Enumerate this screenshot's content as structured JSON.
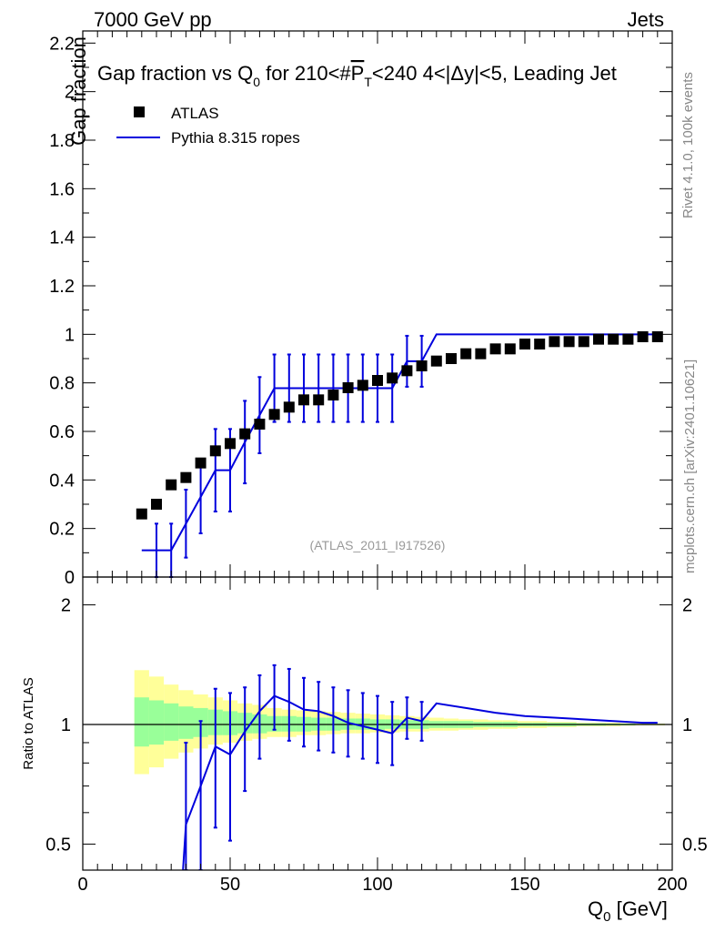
{
  "header": {
    "left": "7000 GeV pp",
    "right": "Jets"
  },
  "side_text": {
    "rivet": "Rivet 4.1.0,  100k events",
    "mcplots": "mcplots.cern.ch [arXiv:2401.10621]"
  },
  "watermark": "(ATLAS_2011_I917526)",
  "title": {
    "part1": "Gap fraction vs Q",
    "sub0": "0",
    "part2": " for 210<#",
    "pbar": "P",
    "subT": "T",
    "part3": "<240  4<|Δy|<5, Leading Jet"
  },
  "axes": {
    "ylabel_top": "Gap fraction",
    "ylabel_bottom": "Ratio to ATLAS",
    "xlabel_main": "Q",
    "xlabel_sub": "0",
    "xlabel_unit": " [GeV]",
    "x_ticks": [
      "0",
      "50",
      "100",
      "150",
      "200"
    ],
    "y_ticks_top": [
      "0",
      "0.2",
      "0.4",
      "0.6",
      "0.8",
      "1",
      "1.2",
      "1.4",
      "1.6",
      "1.8",
      "2",
      "2.2"
    ],
    "y_ticks_bottom": [
      "0.5",
      "1",
      "2"
    ]
  },
  "legend": {
    "data_label": "ATLAS",
    "mc_label": "Pythia 8.315 ropes"
  },
  "colors": {
    "mc": "#0000dd",
    "band_inner": "#99ff99",
    "band_outer": "#ffff99",
    "data": "#000000"
  },
  "chart_data": {
    "type": "line",
    "title": "Gap fraction vs Q0 for 210<#PT<240  4<|Δy|<5, Leading Jet",
    "xlabel": "Q0 [GeV]",
    "ylabel": "Gap fraction",
    "xlim": [
      0,
      200
    ],
    "ylim": [
      0,
      2.25
    ],
    "ratio_ylim_log": [
      0.43,
      2.35
    ],
    "data_x": [
      20,
      25,
      30,
      35,
      40,
      45,
      50,
      55,
      60,
      65,
      70,
      75,
      80,
      85,
      90,
      95,
      100,
      105,
      110,
      115,
      120,
      125,
      130,
      135,
      140,
      145,
      150,
      155,
      160,
      165,
      170,
      175,
      180,
      185,
      190,
      195
    ],
    "data_y": [
      0.26,
      0.3,
      0.38,
      0.41,
      0.47,
      0.52,
      0.55,
      0.59,
      0.63,
      0.67,
      0.7,
      0.73,
      0.73,
      0.75,
      0.78,
      0.79,
      0.81,
      0.82,
      0.85,
      0.87,
      0.89,
      0.9,
      0.92,
      0.92,
      0.94,
      0.94,
      0.96,
      0.96,
      0.97,
      0.97,
      0.97,
      0.98,
      0.98,
      0.98,
      0.99,
      0.99
    ],
    "mc_steps": [
      {
        "x0": 25,
        "x1": 30,
        "y": 0.11
      },
      {
        "x0": 30,
        "x1": 35,
        "y": 0.11
      },
      {
        "x0": 45,
        "x1": 50,
        "y": 0.44
      },
      {
        "x0": 65,
        "x1": 105,
        "y": 0.778
      },
      {
        "x0": 110,
        "x1": 115,
        "y": 0.89
      },
      {
        "x0": 120,
        "x1": 195,
        "y": 1.0
      }
    ],
    "mc_points": [
      {
        "x": 25,
        "y": 0.11,
        "err": 0.11
      },
      {
        "x": 30,
        "y": 0.11,
        "err": 0.11
      },
      {
        "x": 35,
        "y": 0.22,
        "err": 0.14
      },
      {
        "x": 40,
        "y": 0.33,
        "err": 0.15
      },
      {
        "x": 45,
        "y": 0.44,
        "err": 0.17
      },
      {
        "x": 50,
        "y": 0.44,
        "err": 0.17
      },
      {
        "x": 55,
        "y": 0.556,
        "err": 0.17
      },
      {
        "x": 60,
        "y": 0.667,
        "err": 0.157
      },
      {
        "x": 65,
        "y": 0.778,
        "err": 0.139
      },
      {
        "x": 70,
        "y": 0.778,
        "err": 0.139
      },
      {
        "x": 75,
        "y": 0.778,
        "err": 0.139
      },
      {
        "x": 80,
        "y": 0.778,
        "err": 0.139
      },
      {
        "x": 85,
        "y": 0.778,
        "err": 0.139
      },
      {
        "x": 90,
        "y": 0.778,
        "err": 0.139
      },
      {
        "x": 95,
        "y": 0.778,
        "err": 0.139
      },
      {
        "x": 100,
        "y": 0.778,
        "err": 0.139
      },
      {
        "x": 105,
        "y": 0.778,
        "err": 0.139
      },
      {
        "x": 110,
        "y": 0.889,
        "err": 0.105
      },
      {
        "x": 115,
        "y": 0.889,
        "err": 0.105
      }
    ],
    "mc_line": [
      [
        20,
        0.11
      ],
      [
        25,
        0.11
      ],
      [
        30,
        0.11
      ],
      [
        35,
        0.22
      ],
      [
        40,
        0.33
      ],
      [
        45,
        0.44
      ],
      [
        50,
        0.44
      ],
      [
        55,
        0.556
      ],
      [
        60,
        0.667
      ],
      [
        65,
        0.778
      ],
      [
        70,
        0.778
      ],
      [
        75,
        0.778
      ],
      [
        80,
        0.778
      ],
      [
        85,
        0.778
      ],
      [
        90,
        0.778
      ],
      [
        95,
        0.778
      ],
      [
        100,
        0.778
      ],
      [
        105,
        0.778
      ],
      [
        110,
        0.889
      ],
      [
        115,
        0.889
      ],
      [
        120,
        1.0
      ],
      [
        195,
        1.0
      ]
    ],
    "ratio_line": [
      [
        34,
        0.43
      ],
      [
        35,
        0.56
      ],
      [
        40,
        0.7
      ],
      [
        45,
        0.88
      ],
      [
        50,
        0.84
      ],
      [
        55,
        0.96
      ],
      [
        60,
        1.08
      ],
      [
        65,
        1.18
      ],
      [
        70,
        1.14
      ],
      [
        75,
        1.09
      ],
      [
        80,
        1.08
      ],
      [
        85,
        1.05
      ],
      [
        90,
        1.01
      ],
      [
        95,
        0.99
      ],
      [
        100,
        0.97
      ],
      [
        105,
        0.95
      ],
      [
        110,
        1.04
      ],
      [
        115,
        1.02
      ],
      [
        120,
        1.13
      ],
      [
        130,
        1.1
      ],
      [
        140,
        1.07
      ],
      [
        150,
        1.05
      ],
      [
        160,
        1.04
      ],
      [
        170,
        1.03
      ],
      [
        180,
        1.02
      ],
      [
        190,
        1.01
      ],
      [
        195,
        1.01
      ]
    ],
    "ratio_points": [
      {
        "x": 35,
        "lo": 0.43,
        "hi": 0.9
      },
      {
        "x": 40,
        "lo": 0.43,
        "hi": 1.02
      },
      {
        "x": 45,
        "lo": 0.55,
        "hi": 1.23
      },
      {
        "x": 50,
        "lo": 0.51,
        "hi": 1.2
      },
      {
        "x": 55,
        "lo": 0.68,
        "hi": 1.24
      },
      {
        "x": 60,
        "lo": 0.82,
        "hi": 1.33
      },
      {
        "x": 65,
        "lo": 0.97,
        "hi": 1.41
      },
      {
        "x": 70,
        "lo": 0.91,
        "hi": 1.38
      },
      {
        "x": 75,
        "lo": 0.88,
        "hi": 1.31
      },
      {
        "x": 80,
        "lo": 0.86,
        "hi": 1.28
      },
      {
        "x": 85,
        "lo": 0.85,
        "hi": 1.24
      },
      {
        "x": 90,
        "lo": 0.83,
        "hi": 1.22
      },
      {
        "x": 95,
        "lo": 0.82,
        "hi": 1.2
      },
      {
        "x": 100,
        "lo": 0.8,
        "hi": 1.18
      },
      {
        "x": 105,
        "lo": 0.79,
        "hi": 1.14
      },
      {
        "x": 110,
        "lo": 0.92,
        "hi": 1.17
      },
      {
        "x": 115,
        "lo": 0.91,
        "hi": 1.14
      }
    ],
    "band_bins": [
      {
        "x0": 17.5,
        "x1": 22.5,
        "inner": [
          0.88,
          1.17
        ],
        "outer": [
          0.75,
          1.37
        ]
      },
      {
        "x0": 22.5,
        "x1": 27.5,
        "inner": [
          0.89,
          1.15
        ],
        "outer": [
          0.78,
          1.32
        ]
      },
      {
        "x0": 27.5,
        "x1": 32.5,
        "inner": [
          0.91,
          1.13
        ],
        "outer": [
          0.82,
          1.26
        ]
      },
      {
        "x0": 32.5,
        "x1": 37.5,
        "inner": [
          0.92,
          1.11
        ],
        "outer": [
          0.85,
          1.22
        ]
      },
      {
        "x0": 37.5,
        "x1": 42.5,
        "inner": [
          0.93,
          1.1
        ],
        "outer": [
          0.87,
          1.19
        ]
      },
      {
        "x0": 42.5,
        "x1": 47.5,
        "inner": [
          0.94,
          1.09
        ],
        "outer": [
          0.89,
          1.17
        ]
      },
      {
        "x0": 47.5,
        "x1": 52.5,
        "inner": [
          0.94,
          1.08
        ],
        "outer": [
          0.9,
          1.15
        ]
      },
      {
        "x0": 52.5,
        "x1": 57.5,
        "inner": [
          0.95,
          1.07
        ],
        "outer": [
          0.91,
          1.13
        ]
      },
      {
        "x0": 57.5,
        "x1": 62.5,
        "inner": [
          0.95,
          1.06
        ],
        "outer": [
          0.92,
          1.12
        ]
      },
      {
        "x0": 62.5,
        "x1": 67.5,
        "inner": [
          0.96,
          1.05
        ],
        "outer": [
          0.93,
          1.1
        ]
      },
      {
        "x0": 67.5,
        "x1": 72.5,
        "inner": [
          0.96,
          1.05
        ],
        "outer": [
          0.93,
          1.09
        ]
      },
      {
        "x0": 72.5,
        "x1": 77.5,
        "inner": [
          0.96,
          1.045
        ],
        "outer": [
          0.94,
          1.085
        ]
      },
      {
        "x0": 77.5,
        "x1": 82.5,
        "inner": [
          0.965,
          1.04
        ],
        "outer": [
          0.94,
          1.08
        ]
      },
      {
        "x0": 82.5,
        "x1": 87.5,
        "inner": [
          0.965,
          1.04
        ],
        "outer": [
          0.945,
          1.075
        ]
      },
      {
        "x0": 87.5,
        "x1": 92.5,
        "inner": [
          0.97,
          1.035
        ],
        "outer": [
          0.95,
          1.07
        ]
      },
      {
        "x0": 92.5,
        "x1": 97.5,
        "inner": [
          0.97,
          1.035
        ],
        "outer": [
          0.95,
          1.065
        ]
      },
      {
        "x0": 97.5,
        "x1": 102.5,
        "inner": [
          0.97,
          1.03
        ],
        "outer": [
          0.955,
          1.06
        ]
      },
      {
        "x0": 102.5,
        "x1": 107.5,
        "inner": [
          0.975,
          1.03
        ],
        "outer": [
          0.955,
          1.055
        ]
      },
      {
        "x0": 107.5,
        "x1": 112.5,
        "inner": [
          0.975,
          1.025
        ],
        "outer": [
          0.96,
          1.05
        ]
      },
      {
        "x0": 112.5,
        "x1": 117.5,
        "inner": [
          0.975,
          1.025
        ],
        "outer": [
          0.96,
          1.045
        ]
      },
      {
        "x0": 117.5,
        "x1": 122.5,
        "inner": [
          0.98,
          1.02
        ],
        "outer": [
          0.965,
          1.04
        ]
      },
      {
        "x0": 122.5,
        "x1": 127.5,
        "inner": [
          0.98,
          1.02
        ],
        "outer": [
          0.965,
          1.035
        ]
      },
      {
        "x0": 127.5,
        "x1": 132.5,
        "inner": [
          0.98,
          1.02
        ],
        "outer": [
          0.97,
          1.03
        ]
      },
      {
        "x0": 132.5,
        "x1": 137.5,
        "inner": [
          0.985,
          1.015
        ],
        "outer": [
          0.97,
          1.03
        ]
      },
      {
        "x0": 137.5,
        "x1": 142.5,
        "inner": [
          0.985,
          1.015
        ],
        "outer": [
          0.975,
          1.025
        ]
      },
      {
        "x0": 142.5,
        "x1": 147.5,
        "inner": [
          0.985,
          1.015
        ],
        "outer": [
          0.975,
          1.025
        ]
      },
      {
        "x0": 147.5,
        "x1": 152.5,
        "inner": [
          0.99,
          1.01
        ],
        "outer": [
          0.98,
          1.02
        ]
      },
      {
        "x0": 152.5,
        "x1": 157.5,
        "inner": [
          0.99,
          1.01
        ],
        "outer": [
          0.98,
          1.02
        ]
      },
      {
        "x0": 157.5,
        "x1": 162.5,
        "inner": [
          0.99,
          1.01
        ],
        "outer": [
          0.985,
          1.015
        ]
      },
      {
        "x0": 162.5,
        "x1": 167.5,
        "inner": [
          0.99,
          1.01
        ],
        "outer": [
          0.985,
          1.015
        ]
      },
      {
        "x0": 167.5,
        "x1": 172.5,
        "inner": [
          0.993,
          1.007
        ],
        "outer": [
          0.99,
          1.01
        ]
      },
      {
        "x0": 172.5,
        "x1": 177.5,
        "inner": [
          0.993,
          1.007
        ],
        "outer": [
          0.99,
          1.01
        ]
      },
      {
        "x0": 177.5,
        "x1": 182.5,
        "inner": [
          0.995,
          1.005
        ],
        "outer": [
          0.99,
          1.01
        ]
      },
      {
        "x0": 182.5,
        "x1": 187.5,
        "inner": [
          0.995,
          1.005
        ],
        "outer": [
          0.993,
          1.007
        ]
      },
      {
        "x0": 187.5,
        "x1": 192.5,
        "inner": [
          0.997,
          1.003
        ],
        "outer": [
          0.995,
          1.005
        ]
      },
      {
        "x0": 192.5,
        "x1": 197.5,
        "inner": [
          0.997,
          1.003
        ],
        "outer": [
          0.995,
          1.005
        ]
      }
    ]
  }
}
